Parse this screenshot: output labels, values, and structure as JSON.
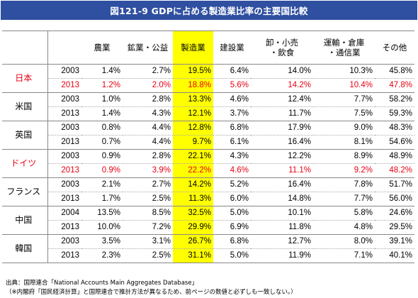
{
  "title": "図121-9  GDPに占める製造業比率の主要国比較",
  "columns": [
    "",
    "",
    "農業",
    "鉱業・公益",
    "製造業",
    "建設業",
    "卸・小売\n・飲食",
    "運輸・倉庫\n・通信業",
    "その他"
  ],
  "colors": {
    "title_bg": "#2f4fa0",
    "highlight": "#ffff00",
    "red": "#e60012"
  },
  "countries": [
    {
      "name": "日本",
      "red_name": true,
      "rows": [
        {
          "year": "2003",
          "values": [
            "1.4%",
            "2.7%",
            "19.5%",
            "6.4%",
            "14.0%",
            "10.3%",
            "45.8%"
          ],
          "red": false
        },
        {
          "year": "2013",
          "values": [
            "1.2%",
            "2.0%",
            "18.8%",
            "5.6%",
            "14.2%",
            "10.4%",
            "47.8%"
          ],
          "red": true
        }
      ]
    },
    {
      "name": "米国",
      "red_name": false,
      "rows": [
        {
          "year": "2003",
          "values": [
            "1.0%",
            "2.8%",
            "13.3%",
            "4.6%",
            "12.4%",
            "7.7%",
            "58.2%"
          ],
          "red": false
        },
        {
          "year": "2013",
          "values": [
            "1.4%",
            "4.3%",
            "12.1%",
            "3.7%",
            "11.7%",
            "7.5%",
            "59.3%"
          ],
          "red": false
        }
      ]
    },
    {
      "name": "英国",
      "red_name": false,
      "rows": [
        {
          "year": "2003",
          "values": [
            "0.8%",
            "4.4%",
            "12.8%",
            "6.8%",
            "17.9%",
            "9.0%",
            "48.3%"
          ],
          "red": false
        },
        {
          "year": "2013",
          "values": [
            "0.7%",
            "4.4%",
            "9.7%",
            "6.1%",
            "16.4%",
            "8.1%",
            "54.6%"
          ],
          "red": false
        }
      ]
    },
    {
      "name": "ドイツ",
      "red_name": true,
      "rows": [
        {
          "year": "2003",
          "values": [
            "0.9%",
            "2.8%",
            "22.1%",
            "4.3%",
            "12.2%",
            "8.9%",
            "48.9%"
          ],
          "red": false
        },
        {
          "year": "2013",
          "values": [
            "0.9%",
            "3.9%",
            "22.2%",
            "4.6%",
            "11.1%",
            "9.2%",
            "48.2%"
          ],
          "red": true
        }
      ]
    },
    {
      "name": "フランス",
      "red_name": false,
      "rows": [
        {
          "year": "2003",
          "values": [
            "2.1%",
            "2.7%",
            "14.2%",
            "5.2%",
            "16.4%",
            "7.8%",
            "51.7%"
          ],
          "red": false
        },
        {
          "year": "2013",
          "values": [
            "1.7%",
            "2.5%",
            "11.3%",
            "6.0%",
            "14.8%",
            "7.7%",
            "56.0%"
          ],
          "red": false
        }
      ]
    },
    {
      "name": "中国",
      "red_name": false,
      "rows": [
        {
          "year": "2004",
          "values": [
            "13.5%",
            "8.5%",
            "32.5%",
            "5.0%",
            "10.1%",
            "5.8%",
            "24.6%"
          ],
          "red": false
        },
        {
          "year": "2013",
          "values": [
            "10.0%",
            "7.2%",
            "29.9%",
            "6.9%",
            "11.8%",
            "4.8%",
            "29.5%"
          ],
          "red": false
        }
      ]
    },
    {
      "name": "韓国",
      "red_name": false,
      "rows": [
        {
          "year": "2003",
          "values": [
            "3.5%",
            "3.1%",
            "26.7%",
            "6.8%",
            "12.7%",
            "8.0%",
            "39.1%"
          ],
          "red": false
        },
        {
          "year": "2013",
          "values": [
            "2.3%",
            "2.5%",
            "31.1%",
            "5.0%",
            "11.9%",
            "7.1%",
            "40.1%"
          ],
          "red": false
        }
      ]
    }
  ],
  "footer": {
    "source": "出典：国際連合「National Accounts Main Aggregates Database」",
    "note": "（※内閣府「国民経済計算」と国際連合で推計方法が異なるため、前ページの数値と必ずしも一致しない。）"
  }
}
